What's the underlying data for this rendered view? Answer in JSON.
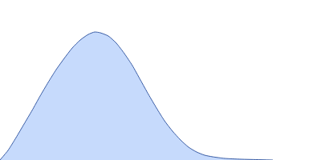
{
  "chart_data": {
    "type": "area",
    "x": [
      0,
      10,
      20,
      30,
      40,
      50,
      60,
      70,
      80,
      90,
      100,
      110,
      118,
      125,
      135,
      145,
      155,
      165,
      175,
      185,
      195,
      205,
      215,
      225,
      235,
      245,
      255,
      265,
      280,
      300,
      320,
      340
    ],
    "values": [
      0,
      12,
      28,
      45,
      62,
      80,
      97,
      113,
      127,
      140,
      150,
      157,
      160,
      159,
      155,
      146,
      133,
      118,
      100,
      82,
      65,
      49,
      36,
      25,
      16,
      10,
      6,
      4,
      2,
      1,
      0.5,
      0
    ],
    "color": "#c6dafc",
    "line_color": "#3b5ea6",
    "xlim": [
      0,
      400
    ],
    "ylim": [
      0,
      200
    ],
    "tick_labels": false,
    "grid": false
  }
}
